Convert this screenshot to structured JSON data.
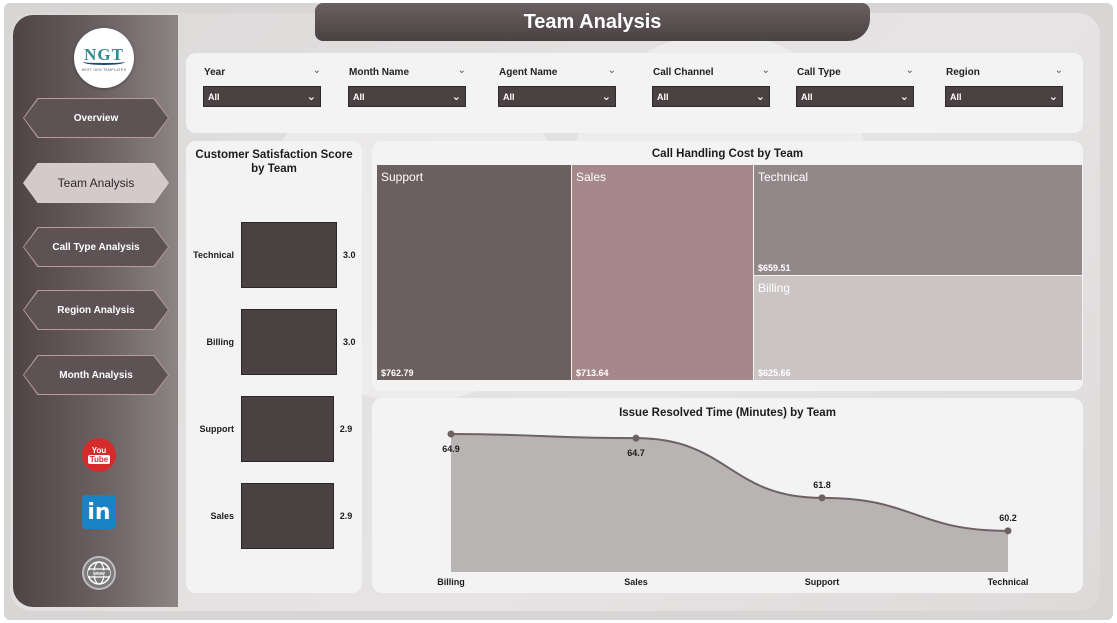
{
  "header": {
    "title": "Team Analysis"
  },
  "logo": {
    "text": "NGT",
    "subtitle": "NEXT GEN TEMPLATES"
  },
  "sidebar": {
    "items": [
      {
        "label": "Overview",
        "active": false
      },
      {
        "label": "Team Analysis",
        "active": true
      },
      {
        "label": "Call Type Analysis",
        "active": false
      },
      {
        "label": "Region Analysis",
        "active": false
      },
      {
        "label": "Month Analysis",
        "active": false
      }
    ],
    "social": {
      "youtube_top": "You",
      "youtube_bottom": "Tube",
      "linkedin": "in",
      "website": "www"
    }
  },
  "filters": [
    {
      "label": "Year",
      "value": "All"
    },
    {
      "label": "Month Name",
      "value": "All"
    },
    {
      "label": "Agent Name",
      "value": "All"
    },
    {
      "label": "Call Channel",
      "value": "All"
    },
    {
      "label": "Call Type",
      "value": "All"
    },
    {
      "label": "Region",
      "value": "All"
    }
  ],
  "colors": {
    "dark": "#4a4143",
    "support": "#6c5f60",
    "sales": "#a6888a",
    "technical": "#938889",
    "billing": "#cbc4c4",
    "area": "#b9b4b4",
    "line": "#6e6163"
  },
  "chart_data": [
    {
      "type": "bar",
      "orientation": "horizontal",
      "title": "Customer Satisfaction Score by Team",
      "categories": [
        "Technical",
        "Billing",
        "Support",
        "Sales"
      ],
      "values": [
        3.0,
        3.0,
        2.9,
        2.9
      ],
      "value_labels": [
        "3.0",
        "3.0",
        "2.9",
        "2.9"
      ]
    },
    {
      "type": "treemap",
      "title": "Call Handling Cost by Team",
      "categories": [
        "Support",
        "Sales",
        "Technical",
        "Billing"
      ],
      "values": [
        762.79,
        713.64,
        659.51,
        625.66
      ],
      "value_labels": [
        "$762.79",
        "$713.64",
        "$659.51",
        "$625.66"
      ]
    },
    {
      "type": "area",
      "title": "Issue Resolved Time (Minutes) by Team",
      "categories": [
        "Billing",
        "Sales",
        "Support",
        "Technical"
      ],
      "values": [
        64.9,
        64.7,
        61.8,
        60.2
      ],
      "value_labels": [
        "64.9",
        "64.7",
        "61.8",
        "60.2"
      ],
      "ylim": [
        58.2,
        65.0
      ]
    }
  ]
}
